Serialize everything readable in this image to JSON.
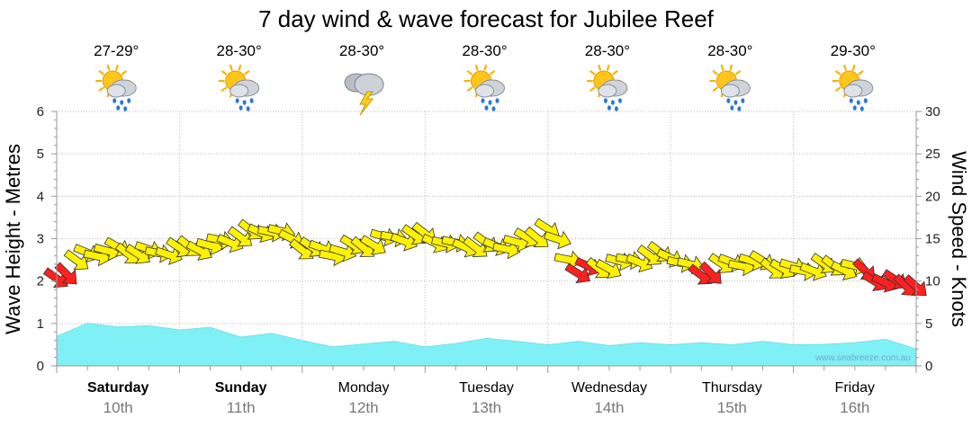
{
  "chart_data": {
    "type": "area",
    "title": "7 day wind & wave forecast for Jubilee Reef",
    "ylabel_left": "Wave Height - Metres",
    "ylabel_right": "Wind Speed - Knots",
    "ylim_left": [
      0,
      6
    ],
    "ylim_right": [
      0,
      30
    ],
    "yticks_left": [
      "0",
      "1",
      "2",
      "3",
      "4",
      "5",
      "6"
    ],
    "yticks_right": [
      "0",
      "5",
      "10",
      "15",
      "20",
      "25",
      "30"
    ],
    "grid": true,
    "credit": "www.seabreeze.com.au",
    "days": [
      {
        "name": "Saturday",
        "date": "10th",
        "bold": true,
        "temp": "27-29°",
        "icon": "sun-cloud-rain-icon"
      },
      {
        "name": "Sunday",
        "date": "11th",
        "bold": true,
        "temp": "28-30°",
        "icon": "sun-cloud-rain-icon"
      },
      {
        "name": "Monday",
        "date": "12th",
        "bold": false,
        "temp": "28-30°",
        "icon": "storm-cloud-icon"
      },
      {
        "name": "Tuesday",
        "date": "13th",
        "bold": false,
        "temp": "28-30°",
        "icon": "sun-cloud-rain-icon"
      },
      {
        "name": "Wednesday",
        "date": "14th",
        "bold": false,
        "temp": "28-30°",
        "icon": "sun-cloud-rain-icon"
      },
      {
        "name": "Thursday",
        "date": "15th",
        "bold": false,
        "temp": "28-30°",
        "icon": "sun-cloud-rain-icon"
      },
      {
        "name": "Friday",
        "date": "16th",
        "bold": false,
        "temp": "29-30°",
        "icon": "sun-cloud-rain-icon"
      }
    ],
    "wave_series": {
      "name": "Wave Height",
      "color": "#7ff0f5",
      "x_days": [
        0,
        0.25,
        0.5,
        0.75,
        1.0,
        1.25,
        1.5,
        1.75,
        2.0,
        2.25,
        2.5,
        2.75,
        3.0,
        3.25,
        3.5,
        3.75,
        4.0,
        4.25,
        4.5,
        4.75,
        5.0,
        5.25,
        5.5,
        5.75,
        6.0,
        6.25,
        6.5,
        6.75,
        7.0
      ],
      "values": [
        0.7,
        0.98,
        0.92,
        0.92,
        0.85,
        0.88,
        0.68,
        0.74,
        0.6,
        0.42,
        0.52,
        0.55,
        0.45,
        0.5,
        0.65,
        0.55,
        0.5,
        0.55,
        0.48,
        0.52,
        0.5,
        0.52,
        0.5,
        0.55,
        0.5,
        0.48,
        0.55,
        0.6,
        0.4
      ]
    },
    "wind_series": {
      "name": "Wind Speed",
      "x_days": [
        0,
        0.25,
        0.5,
        0.75,
        1.0,
        1.25,
        1.5,
        1.75,
        2.0,
        2.25,
        2.5,
        2.75,
        3.0,
        3.25,
        3.5,
        3.75,
        4.0,
        4.25,
        4.5,
        4.75,
        5.0,
        5.25,
        5.5,
        5.75,
        6.0,
        6.25,
        6.5,
        6.75,
        7.0
      ],
      "values_knots": [
        10.5,
        13,
        13.5,
        13.5,
        13.5,
        14,
        15.5,
        16,
        14,
        13.5,
        14,
        15,
        15.5,
        14,
        14,
        14.5,
        16,
        11,
        12,
        12.5,
        13,
        11,
        12,
        12,
        11.5,
        11.5,
        11.5,
        10,
        9.5
      ],
      "highlight_color": "#ff2020",
      "normal_color": "#fff200",
      "highlight_below_knots": 11.5
    }
  }
}
